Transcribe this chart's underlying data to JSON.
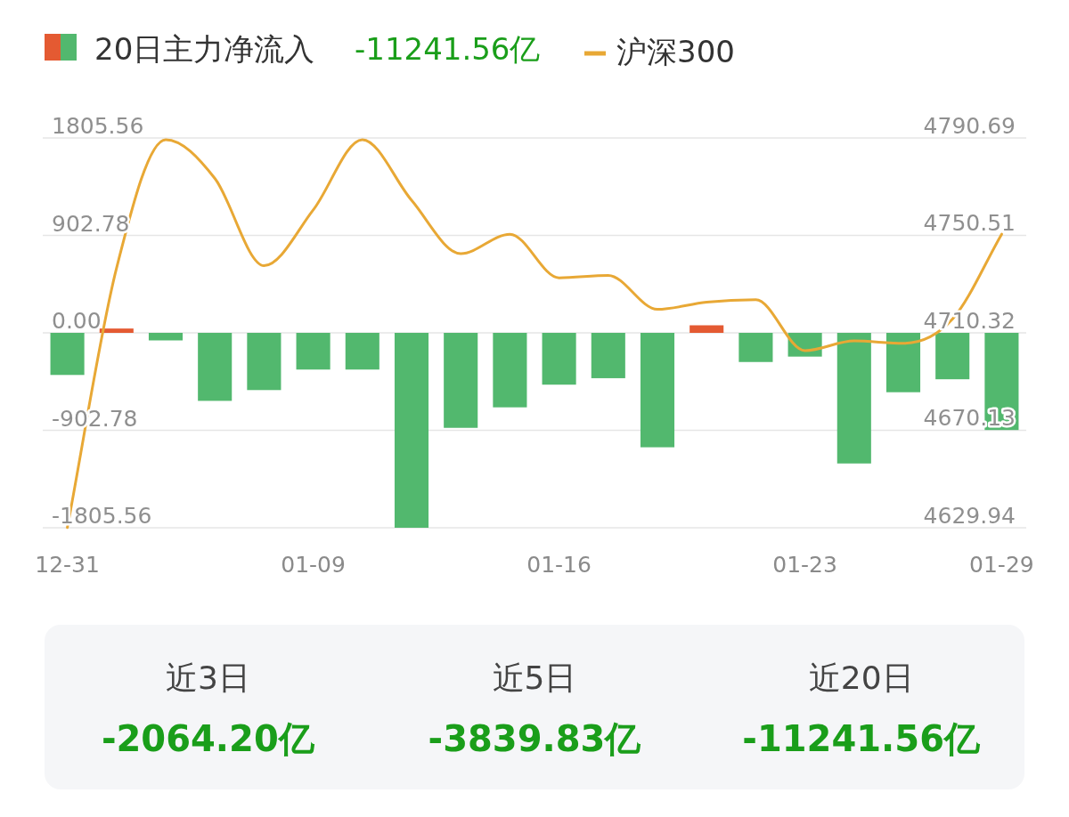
{
  "chart_data": [
    {
      "type": "bar",
      "legend": "top left",
      "grid": "y",
      "annotations": [
        "-11241.56亿"
      ],
      "categories": [
        "12-31",
        null,
        null,
        null,
        null,
        "01-09",
        null,
        null,
        null,
        null,
        "01-16",
        null,
        null,
        null,
        null,
        "01-23",
        null,
        null,
        null,
        "01-29"
      ],
      "ylim": [
        -1805.56,
        1805.56
      ],
      "yticks": [
        1805.56,
        902.78,
        {
          "value": 0,
          "label": "0.00"
        },
        -902.78,
        -1805.56
      ],
      "y2lim": [
        4629.94,
        4790.69
      ],
      "y2ticks": [
        4790.69,
        4750.51,
        4710.32,
        4670.13,
        4629.94
      ],
      "series": [
        {
          "name": "20日主力净流入",
          "type": "bar",
          "colors": [
            "#52b86e",
            "#e45a32",
            "#52b86e",
            "#52b86e",
            "#52b86e",
            "#52b86e",
            "#52b86e",
            "#52b86e",
            "#52b86e",
            "#52b86e",
            "#52b86e",
            "#52b86e",
            "#52b86e",
            "#e45a32",
            "#52b86e",
            "#52b86e",
            "#52b86e",
            "#52b86e",
            "#52b86e",
            "#52b86e"
          ],
          "values": [
            -390,
            40,
            -70,
            -630,
            -530,
            -340,
            -340,
            -1805.56,
            -880,
            -690,
            -480,
            -420,
            -1060,
            70,
            -270,
            -220,
            -1210,
            -550,
            -430,
            -900
          ]
        },
        {
          "name": "沪深300",
          "type": "line",
          "axis": "y2",
          "color": "#e8a835",
          "values": [
            4630,
            4737,
            4790,
            4774,
            4738,
            4761,
            4790,
            4765,
            4743,
            4751,
            4733,
            4734,
            4720,
            4723,
            4724,
            4703,
            4707,
            4706,
            4716,
            4751
          ]
        }
      ]
    },
    {
      "type": "other",
      "annotations": [
        "近3日",
        "-2064.20亿",
        "近5日",
        "-3839.83亿",
        "近20日",
        "-11241.56亿"
      ]
    }
  ]
}
